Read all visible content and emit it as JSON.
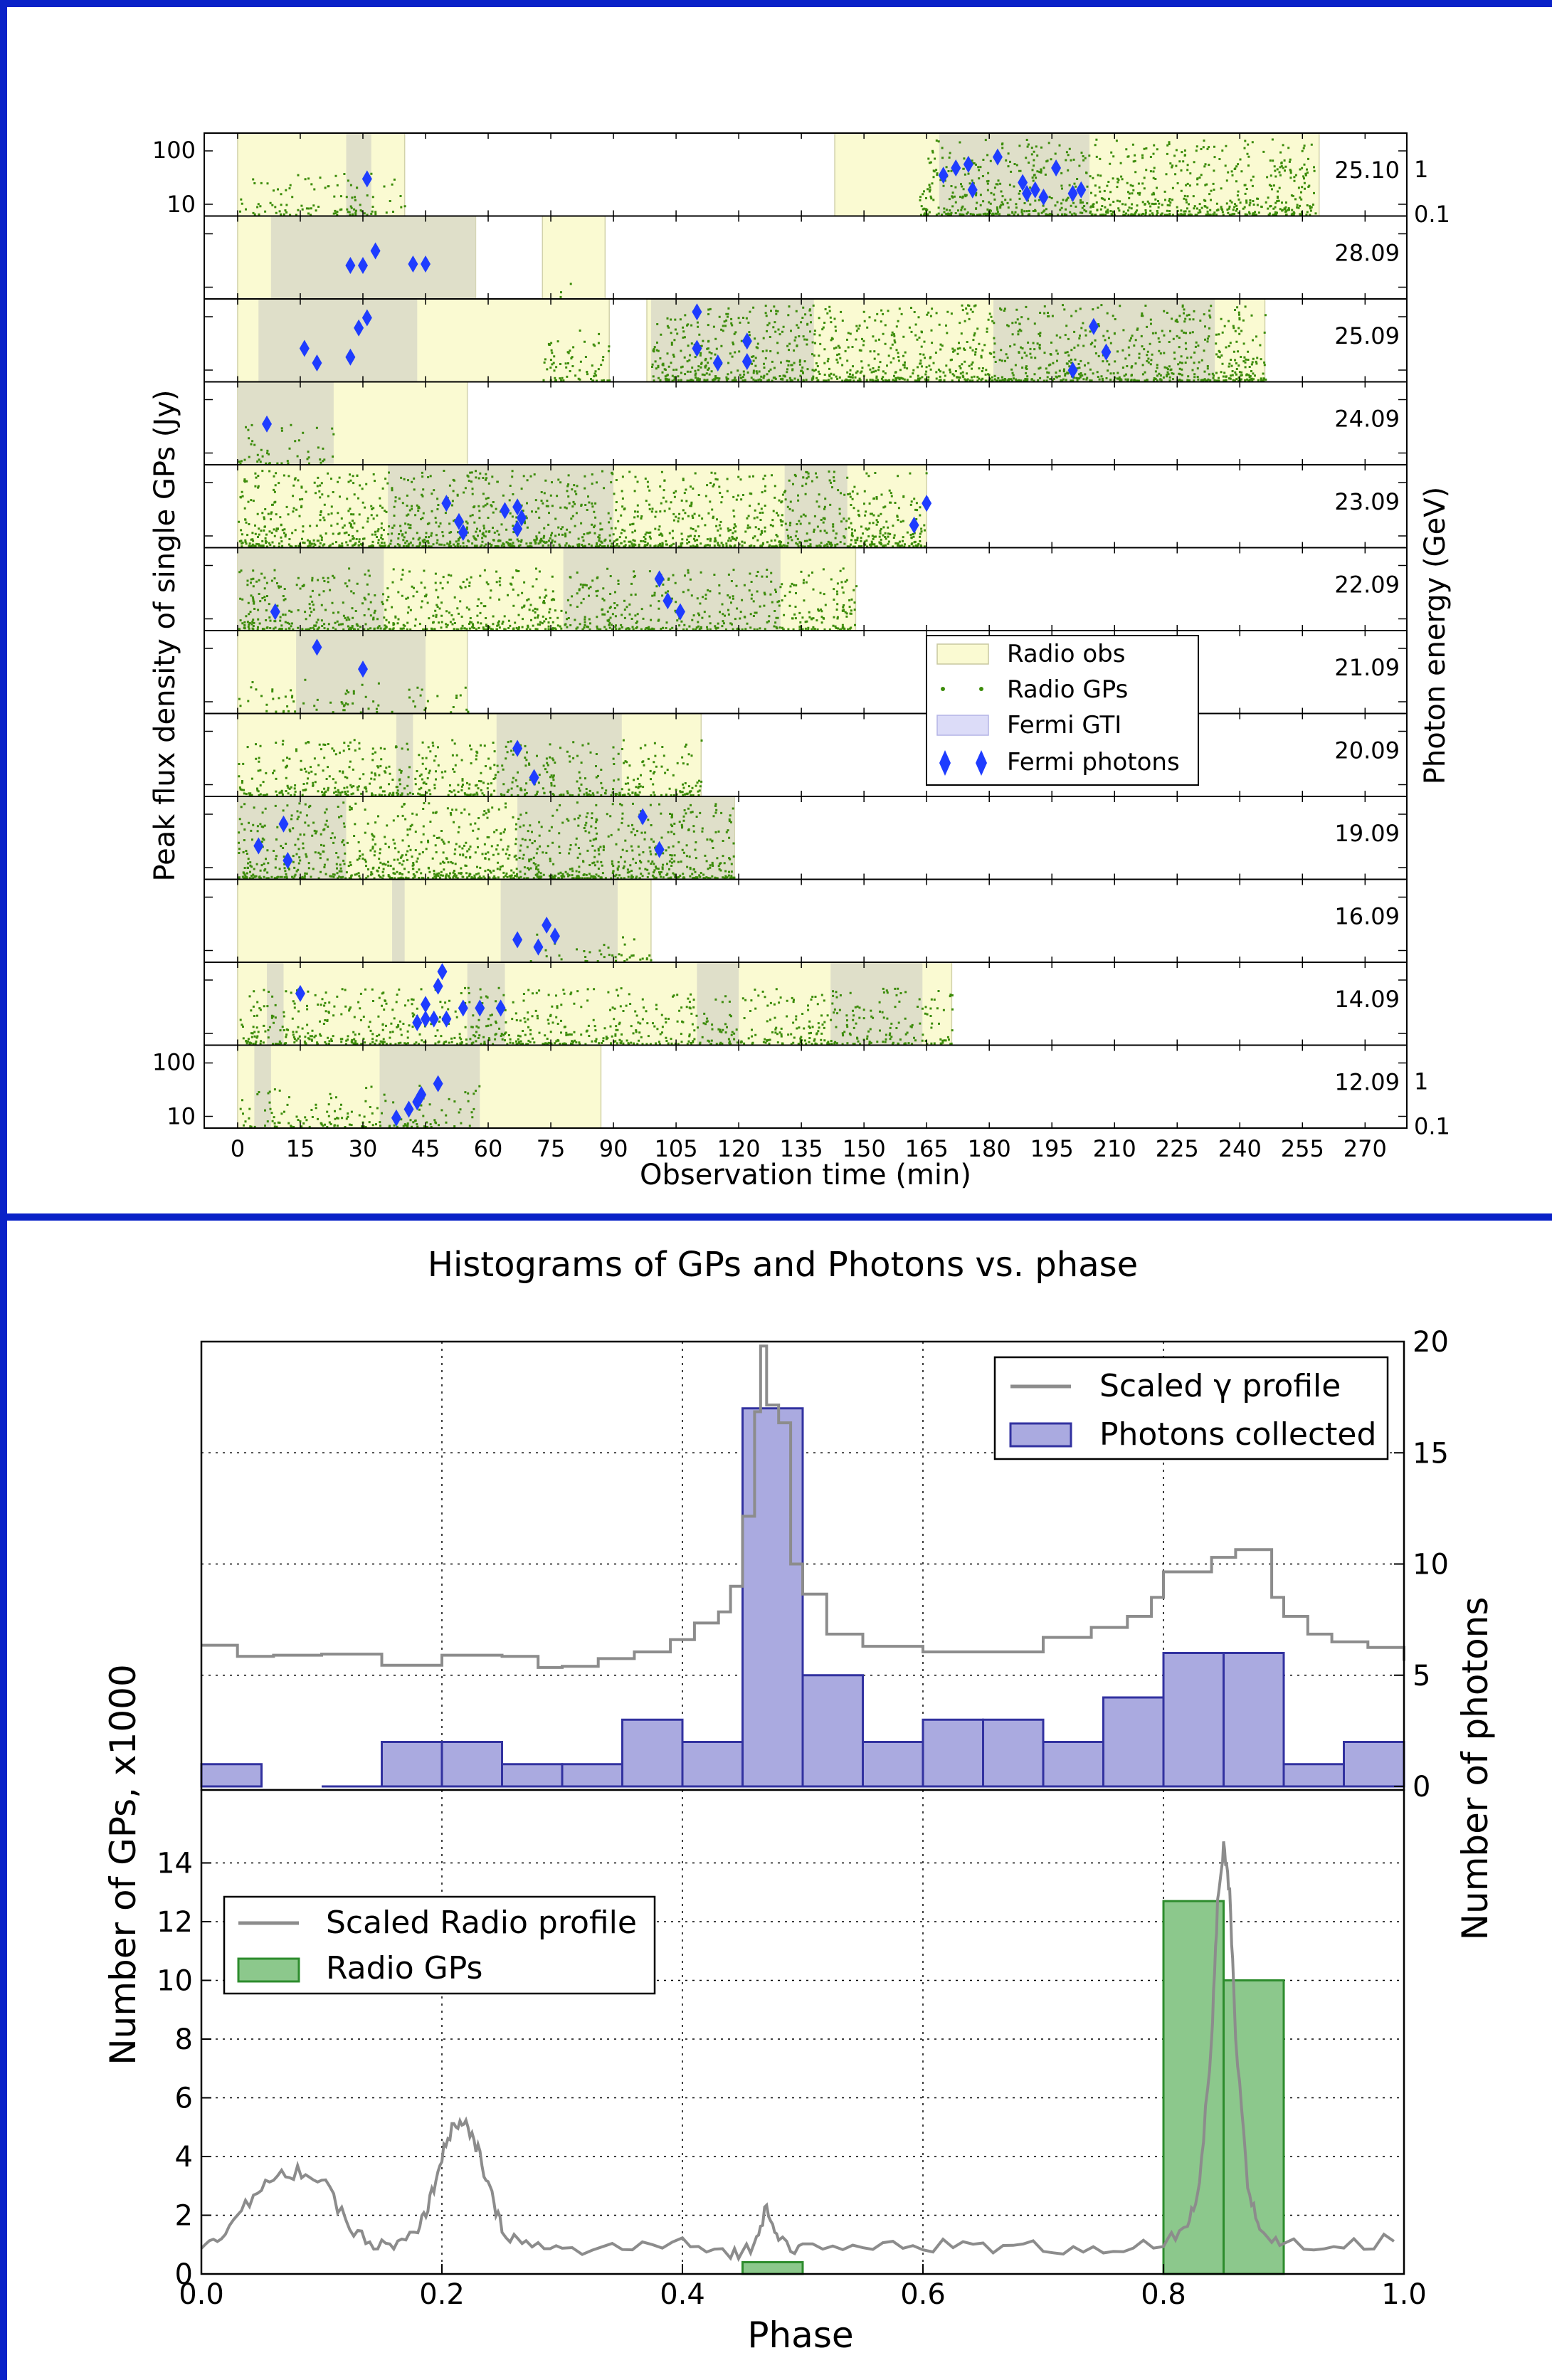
{
  "chart_data": [
    {
      "type": "scatter",
      "xlabel": "Observation time (min)",
      "ylabel_left": "Peak flux density of single GPs (Jy)",
      "ylabel_right": "Photon energy (GeV)",
      "xlim": [
        -8,
        280
      ],
      "xticks": [
        0,
        15,
        30,
        45,
        60,
        75,
        90,
        105,
        120,
        135,
        150,
        165,
        180,
        195,
        210,
        225,
        240,
        255,
        270
      ],
      "left_ticks": [
        "100",
        "10"
      ],
      "right_ticks": [
        "1",
        "0.1"
      ],
      "legend": {
        "placement": "center-right",
        "entries": [
          "Radio obs",
          "Radio GPs",
          "Fermi GTI",
          "Fermi photons"
        ]
      },
      "colors": {
        "radio_obs": "#fafad2",
        "fermi_gti": "#dcdcc8",
        "radio_gps": "#3c8c0a",
        "photons": "#1e3cff"
      },
      "panels": [
        {
          "date": "25.10",
          "obs": [
            [
              0,
              40
            ],
            [
              143,
              259
            ]
          ],
          "gti": [
            [
              26,
              32
            ],
            [
              168,
              204
            ]
          ],
          "gps": [
            [
              0,
              40,
              0.3
            ],
            [
              163,
              258,
              1.0
            ]
          ],
          "photons": [
            [
              31,
              0.45
            ],
            [
              169,
              0.5
            ],
            [
              172,
              0.6
            ],
            [
              175,
              0.65
            ],
            [
              176,
              0.3
            ],
            [
              182,
              0.75
            ],
            [
              188,
              0.4
            ],
            [
              189,
              0.25
            ],
            [
              191,
              0.3
            ],
            [
              193,
              0.2
            ],
            [
              196,
              0.6
            ],
            [
              200,
              0.25
            ],
            [
              202,
              0.3
            ]
          ]
        },
        {
          "date": "28.09",
          "obs": [
            [
              0,
              57
            ],
            [
              73,
              88
            ]
          ],
          "gti": [
            [
              8,
              57
            ]
          ],
          "gps": [
            [
              77,
              80,
              0.1
            ]
          ],
          "photons": [
            [
              27,
              0.4
            ],
            [
              30,
              0.4
            ],
            [
              33,
              0.6
            ],
            [
              42,
              0.42
            ],
            [
              45,
              0.42
            ]
          ]
        },
        {
          "date": "25.09",
          "obs": [
            [
              0,
              89
            ],
            [
              98,
              246
            ]
          ],
          "gti": [
            [
              5,
              43
            ],
            [
              99,
              138
            ],
            [
              181,
              234
            ]
          ],
          "gps": [
            [
              73,
              89,
              0.5
            ],
            [
              99,
              246,
              1.0
            ]
          ],
          "photons": [
            [
              16,
              0.4
            ],
            [
              19,
              0.2
            ],
            [
              27,
              0.28
            ],
            [
              29,
              0.68
            ],
            [
              31,
              0.82
            ],
            [
              110,
              0.9
            ],
            [
              110,
              0.4
            ],
            [
              115,
              0.2
            ],
            [
              122,
              0.5
            ],
            [
              122,
              0.22
            ],
            [
              205,
              0.7
            ],
            [
              200,
              0.1
            ],
            [
              208,
              0.35
            ]
          ]
        },
        {
          "date": "24.09",
          "obs": [
            [
              0,
              55
            ]
          ],
          "gti": [
            [
              0,
              23
            ]
          ],
          "gps": [
            [
              0,
              23,
              0.25
            ]
          ],
          "photons": [
            [
              7,
              0.5
            ]
          ]
        },
        {
          "date": "23.09",
          "obs": [
            [
              0,
              165
            ]
          ],
          "gti": [
            [
              36,
              90
            ],
            [
              131,
              146
            ]
          ],
          "gps": [
            [
              0,
              165,
              1.0
            ]
          ],
          "photons": [
            [
              50,
              0.55
            ],
            [
              53,
              0.3
            ],
            [
              54,
              0.15
            ],
            [
              64,
              0.45
            ],
            [
              67,
              0.5
            ],
            [
              68,
              0.35
            ],
            [
              67,
              0.2
            ],
            [
              162,
              0.25
            ],
            [
              165,
              0.55
            ]
          ]
        },
        {
          "date": "22.09",
          "obs": [
            [
              0,
              148
            ]
          ],
          "gti": [
            [
              0,
              35
            ],
            [
              78,
              130
            ]
          ],
          "gps": [
            [
              0,
              148,
              0.7
            ]
          ],
          "photons": [
            [
              9,
              0.2
            ],
            [
              101,
              0.65
            ],
            [
              103,
              0.35
            ],
            [
              106,
              0.2
            ]
          ]
        },
        {
          "date": "21.09",
          "obs": [
            [
              0,
              55
            ]
          ],
          "gti": [
            [
              14,
              45
            ]
          ],
          "gps": [
            [
              0,
              55,
              0.15
            ]
          ],
          "photons": [
            [
              19,
              0.85
            ],
            [
              30,
              0.55
            ]
          ]
        },
        {
          "date": "20.09",
          "obs": [
            [
              0,
              111
            ]
          ],
          "gti": [
            [
              38,
              42
            ],
            [
              62,
              92
            ]
          ],
          "gps": [
            [
              0,
              111,
              0.6
            ]
          ],
          "photons": [
            [
              67,
              0.6
            ],
            [
              71,
              0.2
            ]
          ]
        },
        {
          "date": "19.09",
          "obs": [
            [
              0,
              119
            ]
          ],
          "gti": [
            [
              0,
              26
            ],
            [
              67,
              119
            ]
          ],
          "gps": [
            [
              0,
              119,
              1.0
            ]
          ],
          "photons": [
            [
              5,
              0.4
            ],
            [
              11,
              0.7
            ],
            [
              12,
              0.2
            ],
            [
              97,
              0.8
            ],
            [
              101,
              0.35
            ]
          ]
        },
        {
          "date": "16.09",
          "obs": [
            [
              0,
              99
            ]
          ],
          "gti": [
            [
              37,
              40
            ],
            [
              63,
              91
            ]
          ],
          "gps": [
            [
              70,
              99,
              0.15
            ]
          ],
          "photons": [
            [
              67,
              0.25
            ],
            [
              72,
              0.15
            ],
            [
              74,
              0.45
            ],
            [
              76,
              0.3
            ]
          ]
        },
        {
          "date": "14.09",
          "obs": [
            [
              0,
              171
            ]
          ],
          "gti": [
            [
              7,
              11
            ],
            [
              55,
              64
            ],
            [
              110,
              120
            ],
            [
              142,
              164
            ]
          ],
          "gps": [
            [
              0,
              171,
              0.6
            ]
          ],
          "photons": [
            [
              15,
              0.65
            ],
            [
              43,
              0.25
            ],
            [
              45,
              0.3
            ],
            [
              47,
              0.3
            ],
            [
              48,
              0.75
            ],
            [
              49,
              0.95
            ],
            [
              50,
              0.3
            ],
            [
              54,
              0.45
            ],
            [
              58,
              0.45
            ],
            [
              63,
              0.45
            ],
            [
              45,
              0.5
            ]
          ]
        },
        {
          "date": "12.09",
          "obs": [
            [
              0,
              87
            ]
          ],
          "gti": [
            [
              4,
              8
            ],
            [
              34,
              58
            ]
          ],
          "gps": [
            [
              0,
              58,
              0.3
            ]
          ],
          "photons": [
            [
              38,
              0.08
            ],
            [
              41,
              0.2
            ],
            [
              43,
              0.3
            ],
            [
              44,
              0.4
            ],
            [
              48,
              0.55
            ]
          ]
        }
      ]
    },
    {
      "type": "bar",
      "title": "Histograms of GPs and Photons vs. phase",
      "xlabel": "Phase",
      "xlim": [
        0.0,
        1.0
      ],
      "xticks": [
        "0.0",
        "0.2",
        "0.4",
        "0.6",
        "0.8",
        "1.0"
      ],
      "ylabel_left": "Number of GPs, x1000",
      "ylabel_right": "Number of photons",
      "grid": true,
      "top": {
        "ylim": [
          0,
          20
        ],
        "yticks": [
          "0",
          "5",
          "10",
          "15",
          "20"
        ],
        "legend": {
          "placement": "top-right",
          "line": "Scaled γ profile",
          "bar": "Photons collected"
        },
        "bin_edges": [
          0.0,
          0.05,
          0.1,
          0.15,
          0.2,
          0.25,
          0.3,
          0.35,
          0.4,
          0.45,
          0.5,
          0.55,
          0.6,
          0.65,
          0.7,
          0.75,
          0.8,
          0.85,
          0.9,
          0.95,
          1.0
        ],
        "values": [
          1,
          0,
          0,
          2,
          2,
          1,
          1,
          3,
          2,
          17,
          5,
          2,
          3,
          3,
          2,
          4,
          6,
          6,
          1,
          2
        ],
        "profile": [
          [
            0.0,
            6.2
          ],
          [
            0.03,
            6.0
          ],
          [
            0.06,
            5.9
          ],
          [
            0.1,
            5.8
          ],
          [
            0.15,
            5.6
          ],
          [
            0.2,
            5.9
          ],
          [
            0.25,
            5.7
          ],
          [
            0.28,
            5.5
          ],
          [
            0.3,
            5.4
          ],
          [
            0.33,
            5.6
          ],
          [
            0.36,
            6.2
          ],
          [
            0.39,
            6.6
          ],
          [
            0.41,
            7.2
          ],
          [
            0.43,
            8.0
          ],
          [
            0.44,
            9.0
          ],
          [
            0.45,
            12
          ],
          [
            0.46,
            17
          ],
          [
            0.465,
            19.8
          ],
          [
            0.47,
            17
          ],
          [
            0.48,
            16.5
          ],
          [
            0.49,
            10
          ],
          [
            0.5,
            8.5
          ],
          [
            0.52,
            7.0
          ],
          [
            0.55,
            6.3
          ],
          [
            0.6,
            5.9
          ],
          [
            0.65,
            6.2
          ],
          [
            0.7,
            6.7
          ],
          [
            0.74,
            7.0
          ],
          [
            0.77,
            7.8
          ],
          [
            0.79,
            8.5
          ],
          [
            0.8,
            9.5
          ],
          [
            0.82,
            9.8
          ],
          [
            0.84,
            10.3
          ],
          [
            0.86,
            10.5
          ],
          [
            0.88,
            10.8
          ],
          [
            0.89,
            8.5
          ],
          [
            0.9,
            7.5
          ],
          [
            0.92,
            7.0
          ],
          [
            0.94,
            6.5
          ],
          [
            0.97,
            6.1
          ],
          [
            1.0,
            5.8
          ]
        ]
      },
      "bottom": {
        "ylim": [
          0,
          16
        ],
        "yticks": [
          "0",
          "2",
          "4",
          "6",
          "8",
          "10",
          "12",
          "14"
        ],
        "legend": {
          "placement": "top-left",
          "line": "Scaled Radio profile",
          "bar": "Radio GPs"
        },
        "bins": [
          [
            0.45,
            0.5,
            0.4
          ],
          [
            0.8,
            0.85,
            12.7
          ],
          [
            0.85,
            0.9,
            10.0
          ]
        ],
        "profile": [
          [
            0.0,
            1.0
          ],
          [
            0.02,
            1.5
          ],
          [
            0.04,
            2.5
          ],
          [
            0.06,
            3.2
          ],
          [
            0.08,
            3.5
          ],
          [
            0.1,
            3.2
          ],
          [
            0.12,
            1.8
          ],
          [
            0.14,
            1.0
          ],
          [
            0.16,
            0.9
          ],
          [
            0.18,
            1.4
          ],
          [
            0.19,
            2.5
          ],
          [
            0.2,
            4.0
          ],
          [
            0.21,
            5.2
          ],
          [
            0.22,
            5.0
          ],
          [
            0.23,
            4.2
          ],
          [
            0.24,
            2.8
          ],
          [
            0.25,
            1.5
          ],
          [
            0.27,
            1.0
          ],
          [
            0.3,
            0.8
          ],
          [
            0.35,
            0.9
          ],
          [
            0.4,
            1.0
          ],
          [
            0.44,
            0.7
          ],
          [
            0.46,
            0.9
          ],
          [
            0.47,
            2.4
          ],
          [
            0.48,
            1.2
          ],
          [
            0.5,
            0.8
          ],
          [
            0.55,
            0.9
          ],
          [
            0.6,
            1.0
          ],
          [
            0.65,
            0.9
          ],
          [
            0.7,
            0.9
          ],
          [
            0.75,
            0.9
          ],
          [
            0.8,
            1.0
          ],
          [
            0.82,
            1.5
          ],
          [
            0.83,
            3.0
          ],
          [
            0.84,
            8.0
          ],
          [
            0.845,
            12.5
          ],
          [
            0.85,
            14.5
          ],
          [
            0.855,
            13.0
          ],
          [
            0.86,
            8.0
          ],
          [
            0.87,
            3.0
          ],
          [
            0.88,
            1.5
          ],
          [
            0.9,
            1.0
          ],
          [
            0.95,
            0.9
          ],
          [
            1.0,
            1.3
          ]
        ]
      }
    }
  ]
}
